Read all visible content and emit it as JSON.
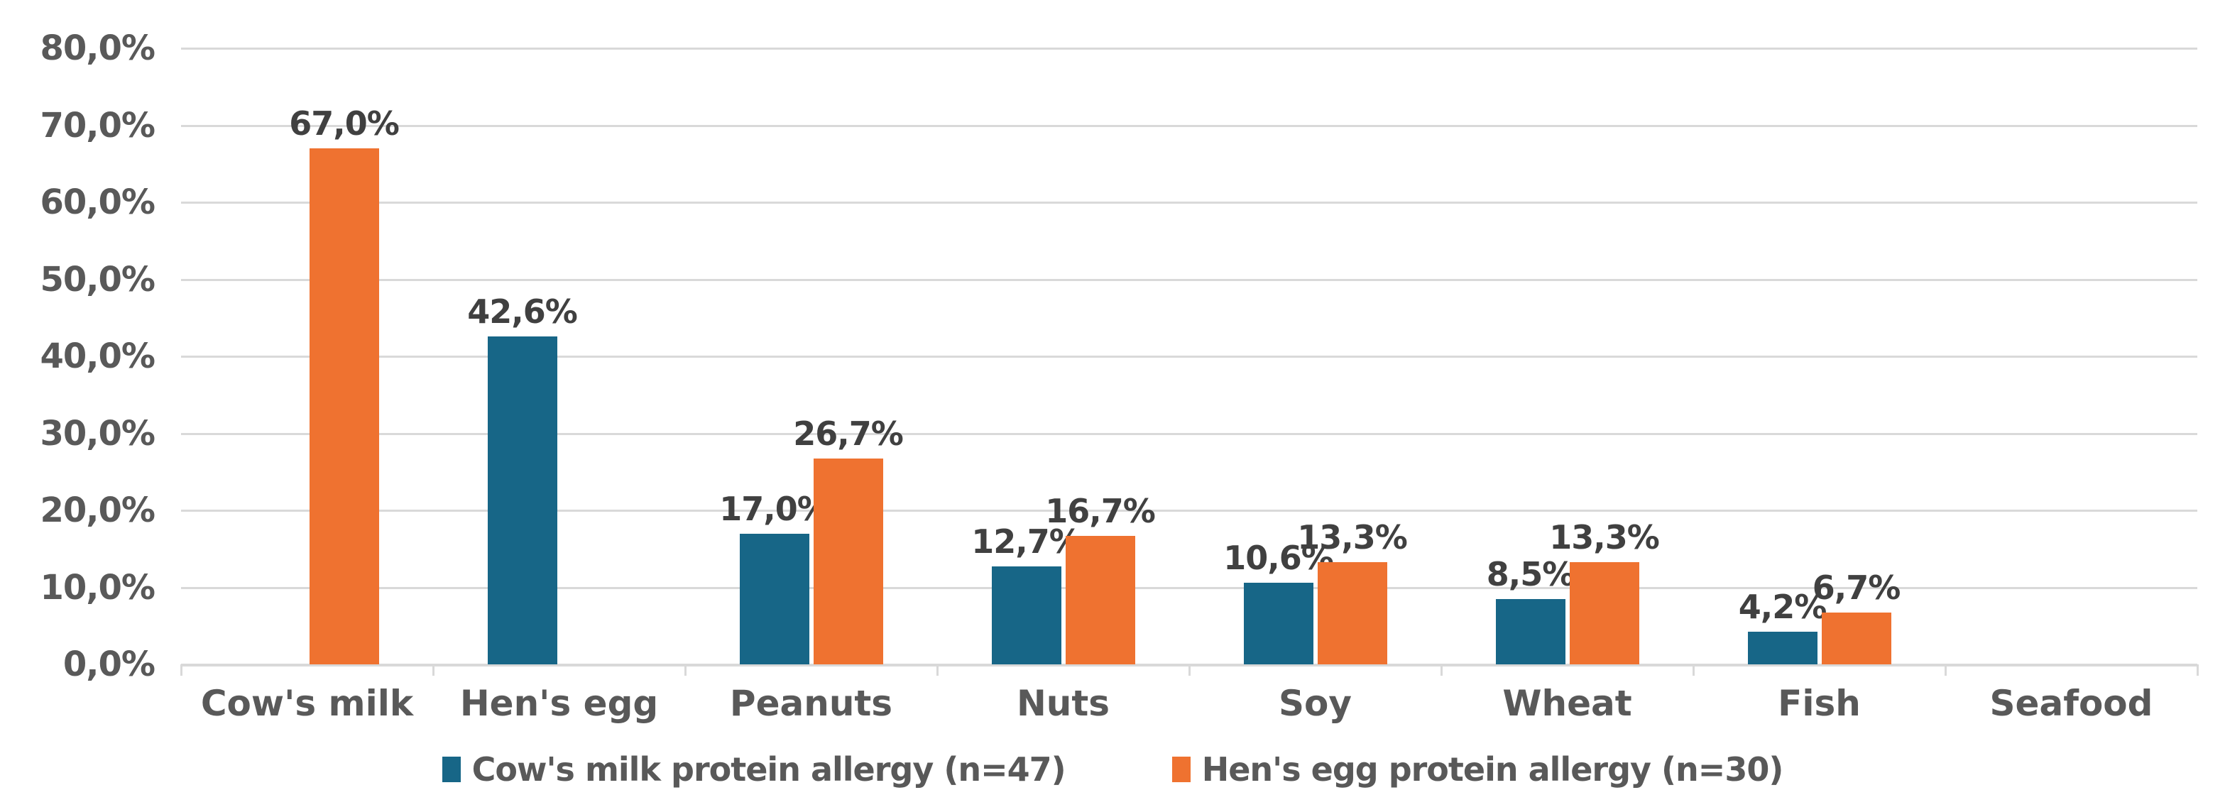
{
  "chart_data": {
    "type": "bar",
    "title": "",
    "xlabel": "",
    "ylabel": "",
    "categories": [
      "Cow's milk",
      "Hen's egg",
      "Peanuts",
      "Nuts",
      "Soy",
      "Wheat",
      "Fish",
      "Seafood"
    ],
    "series": [
      {
        "name": "Cow's milk protein allergy (n=47)",
        "color": "#176687",
        "values": [
          null,
          42.6,
          17.0,
          12.7,
          10.6,
          8.5,
          4.2,
          null
        ],
        "labels": [
          "",
          "42,6%",
          "17,0%",
          "12,7%",
          "10,6%",
          "8,5%",
          "4,2%",
          ""
        ]
      },
      {
        "name": "Hen's egg protein allergy (n=30)",
        "color": "#EF7230",
        "values": [
          67.0,
          null,
          26.7,
          16.7,
          13.3,
          13.3,
          6.7,
          null
        ],
        "labels": [
          "67,0%",
          "",
          "26,7%",
          "16,7%",
          "13,3%",
          "13,3%",
          "6,7%",
          ""
        ]
      }
    ],
    "y_axis": {
      "min": 0,
      "max": 80,
      "step": 10,
      "tick_values": [
        0,
        10,
        20,
        30,
        40,
        50,
        60,
        70,
        80
      ],
      "tick_labels": [
        "0,0%",
        "10,0%",
        "20,0%",
        "30,0%",
        "40,0%",
        "50,0%",
        "60,0%",
        "70,0%",
        "80,0%"
      ]
    },
    "grid": true,
    "legend_position": "bottom",
    "colors": {
      "gridline": "#D9D9D9",
      "axis_text": "#595959",
      "data_label_text": "#404040",
      "background": "#FFFFFF"
    }
  }
}
